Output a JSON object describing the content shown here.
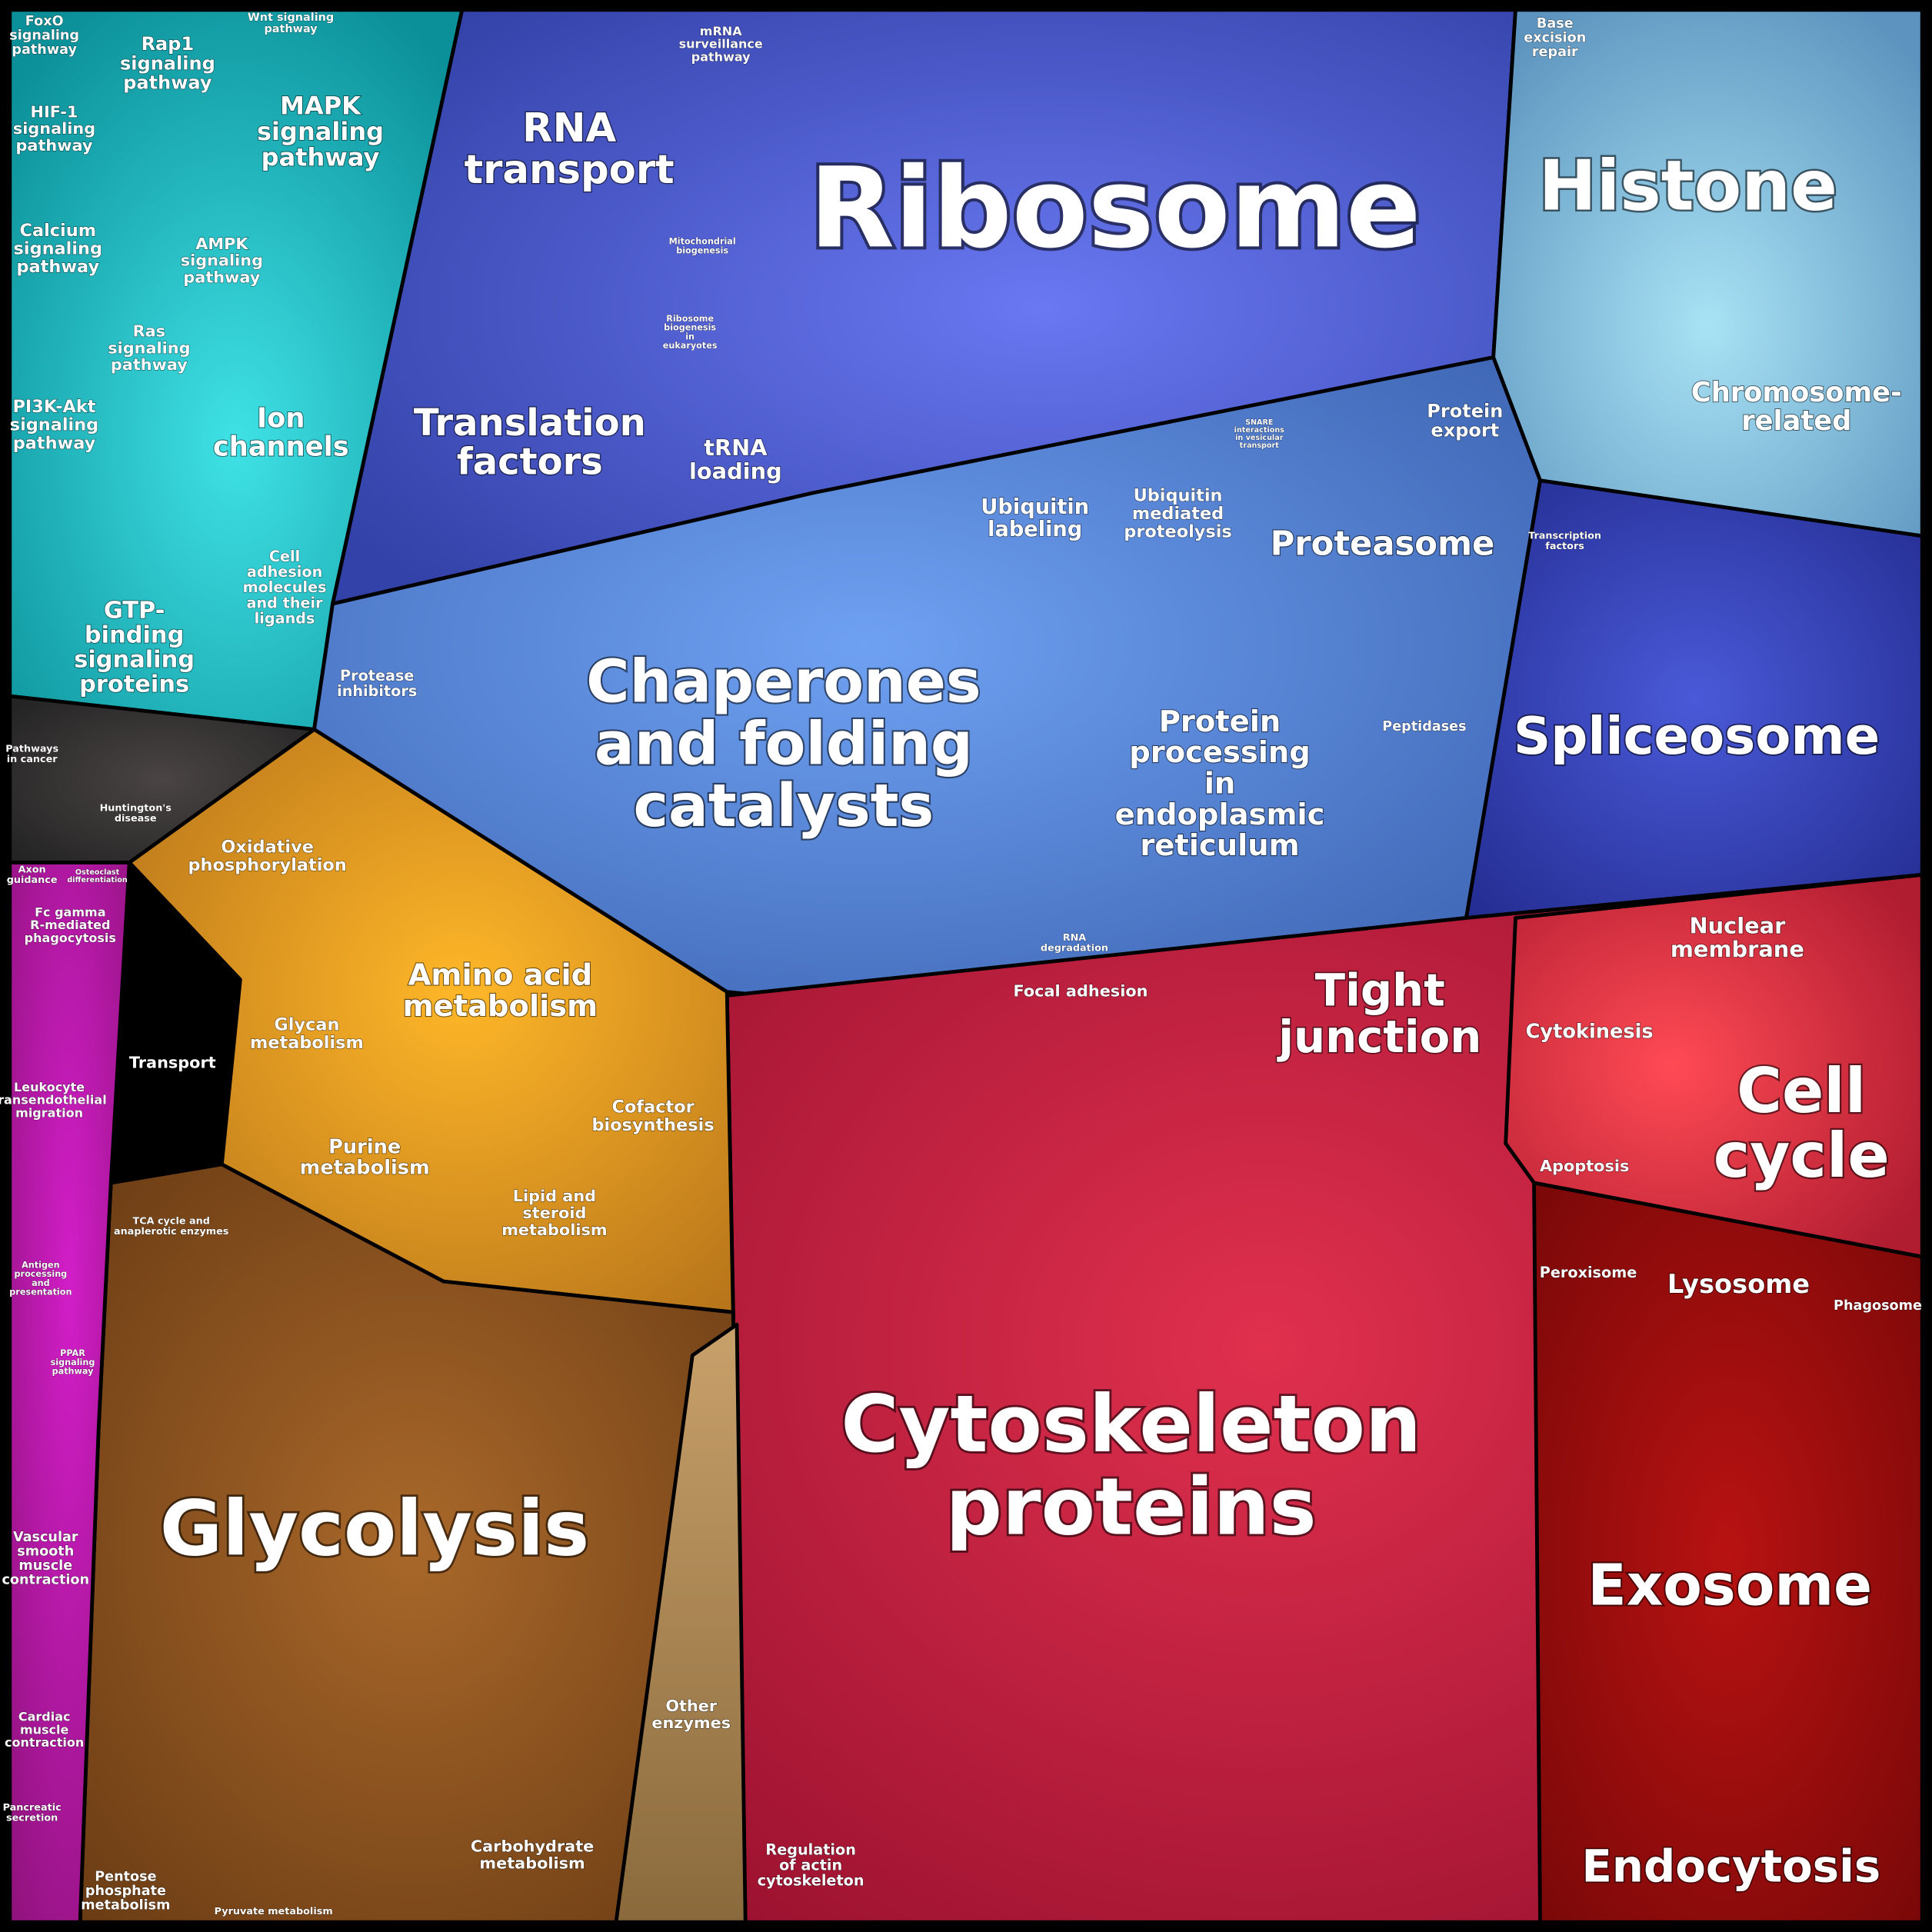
{
  "regions": [
    {
      "lines": [
        "Ribosome"
      ]
    },
    {
      "lines": [
        "Histone"
      ]
    },
    {
      "lines": [
        "Chromosome-",
        "related"
      ]
    },
    {
      "lines": [
        "RNA",
        "transport"
      ]
    },
    {
      "lines": [
        "Translation",
        "factors"
      ]
    },
    {
      "lines": [
        "tRNA",
        "loading"
      ]
    },
    {
      "lines": [
        "mRNA",
        "surveillance",
        "pathway"
      ]
    },
    {
      "lines": [
        "Mitochondrial",
        "biogenesis"
      ]
    },
    {
      "lines": [
        "Ribosome",
        "biogenesis",
        "in",
        "eukaryotes"
      ]
    },
    {
      "lines": [
        "Base",
        "excision",
        "repair"
      ]
    },
    {
      "lines": [
        "Chaperones",
        "and folding",
        "catalysts"
      ]
    },
    {
      "lines": [
        "Protein",
        "processing",
        "in",
        "endoplasmic",
        "reticulum"
      ]
    },
    {
      "lines": [
        "Proteasome"
      ]
    },
    {
      "lines": [
        "Ubiquitin",
        "labeling"
      ]
    },
    {
      "lines": [
        "Ubiquitin",
        "mediated",
        "proteolysis"
      ]
    },
    {
      "lines": [
        "Protein",
        "export"
      ]
    },
    {
      "lines": [
        "Protease",
        "inhibitors"
      ]
    },
    {
      "lines": [
        "Peptidases"
      ]
    },
    {
      "lines": [
        "SNARE",
        "interactions",
        "in vesicular",
        "transport"
      ]
    },
    {
      "lines": [
        "Spliceosome"
      ]
    },
    {
      "lines": [
        "Transcription",
        "factors"
      ]
    },
    {
      "lines": [
        "RNA",
        "degradation"
      ]
    },
    {
      "lines": [
        "Cytoskeleton",
        "proteins"
      ]
    },
    {
      "lines": [
        "Tight",
        "junction"
      ]
    },
    {
      "lines": [
        "Focal adhesion"
      ]
    },
    {
      "lines": [
        "Cell",
        "cycle"
      ]
    },
    {
      "lines": [
        "Nuclear",
        "membrane"
      ]
    },
    {
      "lines": [
        "Cytokinesis"
      ]
    },
    {
      "lines": [
        "Apoptosis"
      ]
    },
    {
      "lines": [
        "Peroxisome"
      ]
    },
    {
      "lines": [
        "Lysosome"
      ]
    },
    {
      "lines": [
        "Phagosome"
      ]
    },
    {
      "lines": [
        "Exosome"
      ]
    },
    {
      "lines": [
        "Endocytosis"
      ]
    },
    {
      "lines": [
        "Regulation",
        "of actin",
        "cytoskeleton"
      ]
    },
    {
      "lines": [
        "Glycolysis"
      ]
    },
    {
      "lines": [
        "Amino acid",
        "metabolism"
      ]
    },
    {
      "lines": [
        "Oxidative",
        "phosphorylation"
      ]
    },
    {
      "lines": [
        "Glycan",
        "metabolism"
      ]
    },
    {
      "lines": [
        "Transport"
      ]
    },
    {
      "lines": [
        "Purine",
        "metabolism"
      ]
    },
    {
      "lines": [
        "Lipid and",
        "steroid",
        "metabolism"
      ]
    },
    {
      "lines": [
        "Cofactor",
        "biosynthesis"
      ]
    },
    {
      "lines": [
        "TCA cycle and",
        "anaplerotic enzymes"
      ]
    },
    {
      "lines": [
        "Other",
        "enzymes"
      ]
    },
    {
      "lines": [
        "Carbohydrate",
        "metabolism"
      ]
    },
    {
      "lines": [
        "Pentose",
        "phosphate",
        "metabolism"
      ]
    },
    {
      "lines": [
        "Pyruvate metabolism"
      ]
    },
    {
      "lines": [
        "Rap1",
        "signaling",
        "pathway"
      ]
    },
    {
      "lines": [
        "MAPK",
        "signaling",
        "pathway"
      ]
    },
    {
      "lines": [
        "FoxO",
        "signaling",
        "pathway"
      ]
    },
    {
      "lines": [
        "Wnt signaling",
        "pathway"
      ]
    },
    {
      "lines": [
        "HIF-1",
        "signaling",
        "pathway"
      ]
    },
    {
      "lines": [
        "Calcium",
        "signaling",
        "pathway"
      ]
    },
    {
      "lines": [
        "AMPK",
        "signaling",
        "pathway"
      ]
    },
    {
      "lines": [
        "Ras",
        "signaling",
        "pathway"
      ]
    },
    {
      "lines": [
        "Ion",
        "channels"
      ]
    },
    {
      "lines": [
        "PI3K-Akt",
        "signaling",
        "pathway"
      ]
    },
    {
      "lines": [
        "Cell",
        "adhesion",
        "molecules",
        "and their",
        "ligands"
      ]
    },
    {
      "lines": [
        "GTP-",
        "binding",
        "signaling",
        "proteins"
      ]
    },
    {
      "lines": [
        "Pathways",
        "in cancer"
      ]
    },
    {
      "lines": [
        "Huntington's",
        "disease"
      ]
    },
    {
      "lines": [
        "Axon",
        "guidance"
      ]
    },
    {
      "lines": [
        "Osteoclast",
        "differentiation"
      ]
    },
    {
      "lines": [
        "Fc gamma",
        "R-mediated",
        "phagocytosis"
      ]
    },
    {
      "lines": [
        "Leukocyte",
        "transendothelial",
        "migration"
      ]
    },
    {
      "lines": [
        "Antigen",
        "processing",
        "and",
        "presentation"
      ]
    },
    {
      "lines": [
        "Vascular",
        "smooth",
        "muscle",
        "contraction"
      ]
    },
    {
      "lines": [
        "Cardiac",
        "muscle",
        "contraction"
      ]
    },
    {
      "lines": [
        "Pancreatic",
        "secretion"
      ]
    },
    {
      "lines": [
        "PPAR",
        "signaling",
        "pathway"
      ]
    }
  ]
}
